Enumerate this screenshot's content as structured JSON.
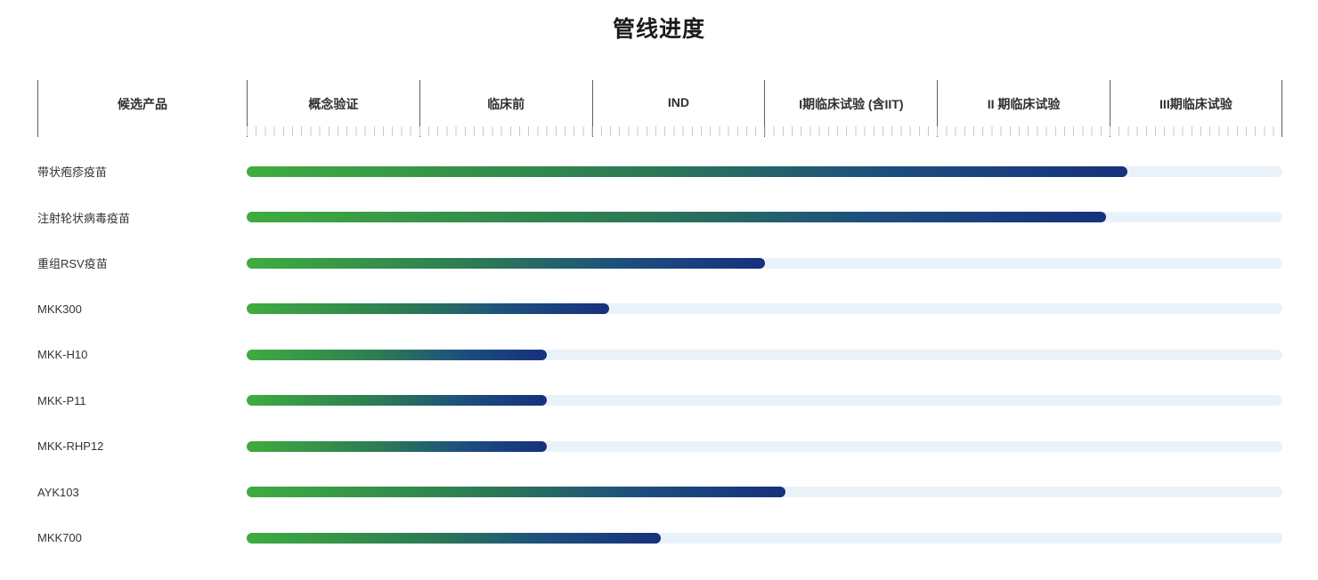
{
  "title": "管线进度",
  "header": {
    "product_label": "候选产品"
  },
  "colors": {
    "bar_gradient_start": "#3fac3f",
    "bar_gradient_end": "#16317d",
    "track": "#eaf2f9",
    "column_line": "#5f5f5f",
    "minor_tick": "#c9c9c9",
    "title_text": "#1b1b1b",
    "label_text": "#333333"
  },
  "chart_data": {
    "type": "bar",
    "orientation": "horizontal",
    "title": "管线进度",
    "categories": [
      "带状疱疹疫苗",
      "注射轮状病毒疫苗",
      "重组RSV疫苗",
      "MKK300",
      "MKK-H10",
      "MKK-P11",
      "MKK-RHP12",
      "AYK103",
      "MKK700"
    ],
    "values": [
      85,
      83,
      50,
      35,
      29,
      29,
      29,
      52,
      40
    ],
    "value_unit": "percent of full timeline axis",
    "stages": [
      "概念验证",
      "临床前",
      "IND",
      "I期临床试验 (含IIT)",
      "II 期临床试验",
      "III期临床试验"
    ],
    "stage_progress_estimate": [
      5.1,
      5.0,
      3.0,
      2.1,
      1.7,
      1.7,
      1.7,
      3.1,
      2.4
    ],
    "xlim": [
      0,
      100
    ],
    "axis_columns": 6,
    "grid": "vertical stage boundaries with minor ticks under header",
    "legend": false
  }
}
